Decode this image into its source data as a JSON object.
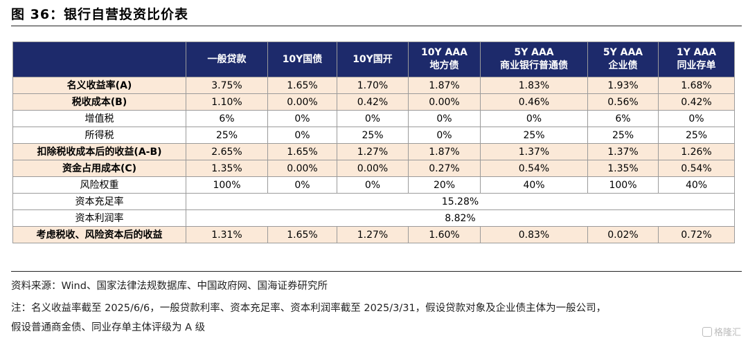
{
  "figure_title": "图 36：银行自营投资比价表",
  "table": {
    "columns": [
      {
        "line1": "一般贷款",
        "line2": ""
      },
      {
        "line1": "10Y国债",
        "line2": ""
      },
      {
        "line1": "10Y国开",
        "line2": ""
      },
      {
        "line1": "10Y AAA",
        "line2": "地方债"
      },
      {
        "line1": "5Y AAA",
        "line2": "商业银行普通债"
      },
      {
        "line1": "5Y AAA",
        "line2": "企业债"
      },
      {
        "line1": "1Y AAA",
        "line2": "同业存单"
      }
    ],
    "rows": [
      {
        "label": "名义收益率(A)",
        "values": [
          "3.75%",
          "1.65%",
          "1.70%",
          "1.87%",
          "1.83%",
          "1.93%",
          "1.68%"
        ]
      },
      {
        "label": "税收成本(B)",
        "values": [
          "1.10%",
          "0.00%",
          "0.42%",
          "0.00%",
          "0.46%",
          "0.56%",
          "0.42%"
        ]
      },
      {
        "label": "增值税",
        "values": [
          "6%",
          "0%",
          "0%",
          "0%",
          "0%",
          "6%",
          "0%"
        ]
      },
      {
        "label": "所得税",
        "values": [
          "25%",
          "0%",
          "25%",
          "0%",
          "25%",
          "25%",
          "25%"
        ]
      },
      {
        "label": "扣除税收成本后的收益(A-B)",
        "values": [
          "2.65%",
          "1.65%",
          "1.27%",
          "1.87%",
          "1.37%",
          "1.37%",
          "1.26%"
        ]
      },
      {
        "label": "资金占用成本(C)",
        "values": [
          "1.35%",
          "0.00%",
          "0.00%",
          "0.27%",
          "0.54%",
          "1.35%",
          "0.54%"
        ]
      },
      {
        "label": "风险权重",
        "values": [
          "100%",
          "0%",
          "0%",
          "20%",
          "40%",
          "100%",
          "40%"
        ]
      },
      {
        "label": "资本充足率",
        "merged": "15.28%"
      },
      {
        "label": "资本利润率",
        "merged": "8.82%"
      },
      {
        "label": "考虑税收、风险资本后的收益",
        "values": [
          "1.31%",
          "1.65%",
          "1.27%",
          "1.60%",
          "0.83%",
          "0.02%",
          "0.72%"
        ]
      }
    ]
  },
  "source_line": "资料来源：Wind、国家法律法规数据库、中国政府网、国海证券研究所",
  "note_line1": "注：名义收益率截至 2025/6/6，一般贷款利率、资本充足率、资本利润率截至 2025/3/31，假设贷款对象及企业债主体为一般公司，",
  "note_line2": "假设普通商金债、同业存单主体评级为 A 级",
  "watermark": "格隆汇",
  "colors": {
    "header_bg": "#1d2a6b",
    "highlight_row": "#fbe9d8"
  }
}
